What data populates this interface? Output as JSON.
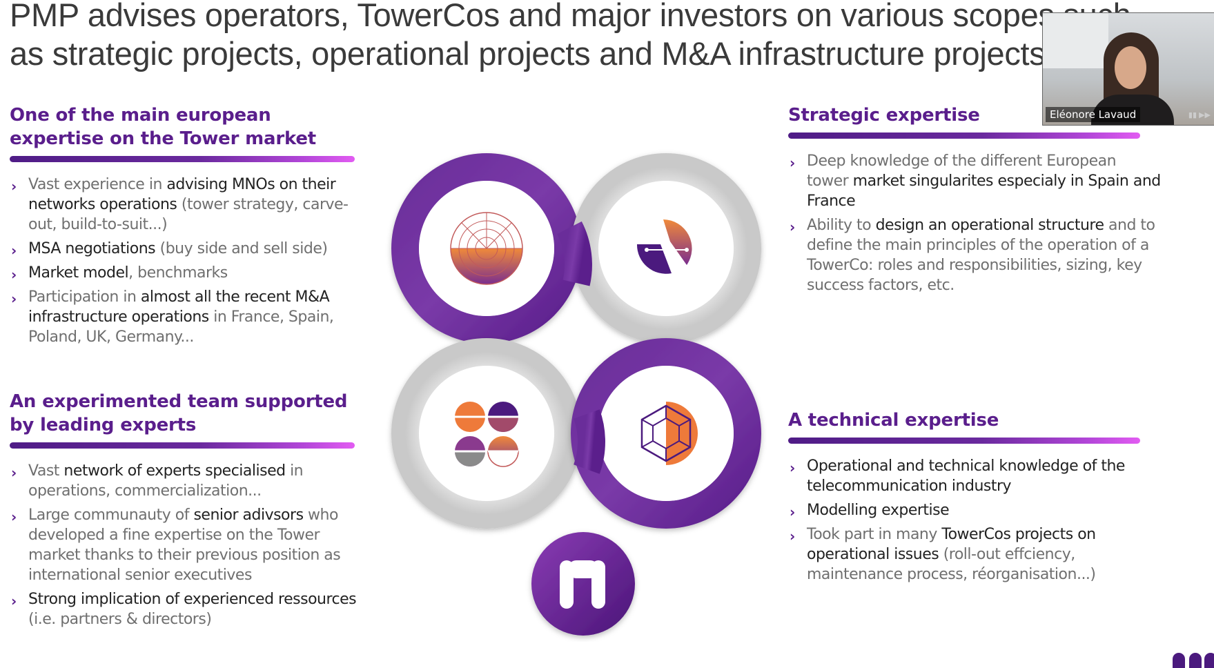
{
  "slide": {
    "title_line1": "PMP advises operators, TowerCos and major investors on various scopes such",
    "title_line2": "as strategic projects, operational projects and M&A infrastructure projects"
  },
  "sections": {
    "tower_market": {
      "title": "One of the main european expertise on the Tower market",
      "bullets": [
        {
          "pre": "Vast experience in ",
          "bold": "advising MNOs on their networks operations",
          "post": " (tower strategy, carve-out, build-to-suit...)"
        },
        {
          "pre": "",
          "bold": "MSA negotiations",
          "post": " (buy side and sell side)"
        },
        {
          "pre": "",
          "bold": "Market model",
          "post": ", benchmarks"
        },
        {
          "pre": "Participation in ",
          "bold": "almost all the recent M&A infrastructure operations",
          "post": " in France, Spain, Poland, UK, Germany..."
        }
      ]
    },
    "strategic": {
      "title": "Strategic  expertise",
      "bullets": [
        {
          "pre": "Deep knowledge of the different European tower ",
          "bold": "market singularites especialy in Spain and France",
          "post": ""
        },
        {
          "pre": "Ability to ",
          "bold": "design an operational structure",
          "post": " and to define the main principles of the operation of a TowerCo: roles and responsibilities, sizing, key success factors, etc."
        }
      ]
    },
    "team": {
      "title": "An experimented team supported by leading experts",
      "bullets": [
        {
          "pre": "Vast ",
          "bold": "network of experts specialised",
          "post": " in operations, commercialization..."
        },
        {
          "pre": "Large communauty of ",
          "bold": "senior adivsors",
          "post": " who developed a fine expertise on the Tower market thanks to their previous position as international senior executives"
        },
        {
          "pre": "",
          "bold": "Strong implication of experienced ressources",
          "post": " (i.e. partners & directors)"
        }
      ]
    },
    "technical": {
      "title": "A technical expertise",
      "bullets": [
        {
          "pre": "",
          "bold": "Operational and technical knowledge of the telecommunication industry",
          "post": ""
        },
        {
          "pre": "",
          "bold": "Modelling expertise",
          "post": ""
        },
        {
          "pre": "Took part in many ",
          "bold": "TowerCos projects on operational issues",
          "post": " (roll-out effciency, maintenance process, réorganisation...)"
        }
      ]
    }
  },
  "video_call": {
    "participant_name": "Eléonore Lavaud"
  },
  "colors": {
    "brand_purple": "#5a1e8c",
    "brand_orange": "#ee7a3a",
    "ring_gray": "#d9d9d9"
  }
}
